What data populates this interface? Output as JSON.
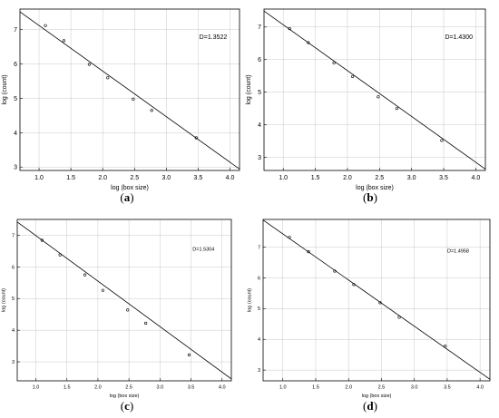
{
  "chart_data": [
    {
      "type": "scatter",
      "panel": "(a)",
      "panel_letter": "a",
      "xlabel": "log (box size)",
      "ylabel": "log (count)",
      "annotation": "D=1.3522",
      "xlim": [
        0.7,
        4.15
      ],
      "ylim": [
        2.9,
        7.6
      ],
      "xticks": [
        "1.0",
        "1.5",
        "2.0",
        "2.5",
        "3.0",
        "3.5",
        "4.0"
      ],
      "yticks": [
        "3",
        "4",
        "5",
        "6",
        "7"
      ],
      "x": [
        1.1,
        1.39,
        1.79,
        2.08,
        2.48,
        2.77,
        3.47
      ],
      "y": [
        7.12,
        6.68,
        5.99,
        5.6,
        4.98,
        4.65,
        3.85
      ],
      "fit": {
        "x": [
          0.7,
          4.15
        ],
        "y": [
          7.52,
          2.94
        ]
      }
    },
    {
      "type": "scatter",
      "panel": "(b)",
      "panel_letter": "b",
      "xlabel": "log (box size)",
      "ylabel": "log (count)",
      "annotation": "D=1.4300",
      "xlim": [
        0.7,
        4.15
      ],
      "ylim": [
        2.6,
        7.55
      ],
      "xticks": [
        "1.0",
        "1.5",
        "2.0",
        "2.5",
        "3.0",
        "3.5",
        "4.0"
      ],
      "yticks": [
        "3",
        "4",
        "5",
        "6",
        "7"
      ],
      "x": [
        1.1,
        1.39,
        1.79,
        2.08,
        2.48,
        2.77,
        3.47
      ],
      "y": [
        6.95,
        6.52,
        5.9,
        5.48,
        4.86,
        4.5,
        3.52
      ],
      "fit": {
        "x": [
          0.7,
          4.15
        ],
        "y": [
          7.49,
          2.64
        ]
      }
    },
    {
      "type": "scatter",
      "panel": "(c)",
      "panel_letter": "c",
      "xlabel": "log (box size)",
      "ylabel": "log (count)",
      "annotation": "D=1.5304",
      "xlim": [
        0.7,
        4.15
      ],
      "ylim": [
        2.4,
        7.5
      ],
      "xticks": [
        "1.0",
        "1.5",
        "2.0",
        "2.5",
        "3.0",
        "3.5",
        "4.0"
      ],
      "yticks": [
        "3",
        "4",
        "5",
        "6",
        "7"
      ],
      "x": [
        1.1,
        1.39,
        1.79,
        2.08,
        2.48,
        2.77,
        3.47
      ],
      "y": [
        6.84,
        6.38,
        5.75,
        5.26,
        4.64,
        4.22,
        3.22
      ],
      "fit": {
        "x": [
          0.7,
          4.15
        ],
        "y": [
          7.42,
          2.46
        ]
      }
    },
    {
      "type": "scatter",
      "panel": "(d)",
      "panel_letter": "d",
      "xlabel": "log (box size)",
      "ylabel": "log (count)",
      "annotation": "D=1.4958",
      "xlim": [
        0.7,
        4.15
      ],
      "ylim": [
        2.65,
        7.9
      ],
      "xticks": [
        "1.0",
        "1.5",
        "2.0",
        "2.5",
        "3.0",
        "3.5",
        "4.0"
      ],
      "yticks": [
        "3",
        "4",
        "5",
        "6",
        "7"
      ],
      "x": [
        1.1,
        1.39,
        1.79,
        2.08,
        2.48,
        2.77,
        3.47
      ],
      "y": [
        7.32,
        6.85,
        6.22,
        5.78,
        5.19,
        4.72,
        3.78
      ],
      "fit": {
        "x": [
          0.7,
          4.15
        ],
        "y": [
          7.88,
          2.7
        ]
      }
    }
  ]
}
